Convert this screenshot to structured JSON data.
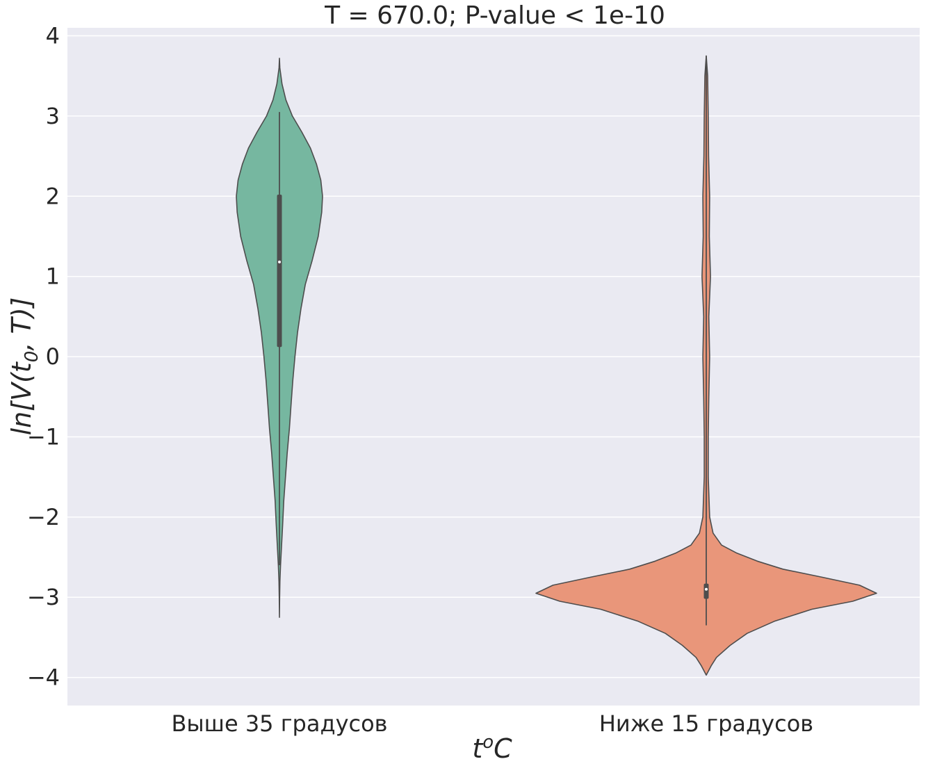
{
  "chart_data": {
    "type": "violin",
    "title": "T = 670.0; P-value < 1e-10",
    "xlabel": "t",
    "xlabel_sup": "o",
    "xlabel_suffix": "C",
    "ylabel": "ln[V(t0, T)]",
    "ylabel_parts": {
      "pre": "ln[V(t",
      "sub": "0",
      "post": ", T)]"
    },
    "ylim": [
      -4.35,
      4.1
    ],
    "yticks": [
      4,
      3,
      2,
      1,
      0,
      -1,
      -2,
      -3,
      -4
    ],
    "ytick_labels": [
      "4",
      "3",
      "2",
      "1",
      "0",
      "−1",
      "−2",
      "−3",
      "−4"
    ],
    "grid": true,
    "background": "#eaeaf2",
    "categories": [
      "Выше 35 градусов",
      "Ниже 15 градусов"
    ],
    "series": [
      {
        "category": "Выше 35 градусов",
        "color": "#76b7a0",
        "whisker": [
          -2.6,
          3.05
        ],
        "q1": 0.12,
        "median": 1.18,
        "q3": 2.02,
        "profile": [
          [
            3.72,
            0.0
          ],
          [
            3.6,
            0.01
          ],
          [
            3.4,
            0.06
          ],
          [
            3.2,
            0.15
          ],
          [
            3.0,
            0.3
          ],
          [
            2.8,
            0.52
          ],
          [
            2.6,
            0.72
          ],
          [
            2.4,
            0.86
          ],
          [
            2.2,
            0.96
          ],
          [
            2.0,
            1.0
          ],
          [
            1.8,
            0.98
          ],
          [
            1.5,
            0.9
          ],
          [
            1.2,
            0.76
          ],
          [
            0.9,
            0.6
          ],
          [
            0.6,
            0.5
          ],
          [
            0.3,
            0.42
          ],
          [
            0.0,
            0.36
          ],
          [
            -0.3,
            0.31
          ],
          [
            -0.6,
            0.27
          ],
          [
            -0.9,
            0.23
          ],
          [
            -1.2,
            0.18
          ],
          [
            -1.5,
            0.14
          ],
          [
            -1.8,
            0.1
          ],
          [
            -2.1,
            0.075
          ],
          [
            -2.4,
            0.045
          ],
          [
            -2.6,
            0.025
          ],
          [
            -2.8,
            0.012
          ],
          [
            -3.0,
            0.005
          ],
          [
            -3.25,
            0.0
          ]
        ]
      },
      {
        "category": "Ниже 15 градусов",
        "color": "#e9967a",
        "whisker": [
          -3.35,
          3.75
        ],
        "q1": -3.02,
        "median": -2.9,
        "q3": -2.83,
        "profile": [
          [
            3.75,
            0.0
          ],
          [
            3.5,
            0.008
          ],
          [
            3.0,
            0.012
          ],
          [
            2.5,
            0.014
          ],
          [
            2.0,
            0.02
          ],
          [
            1.5,
            0.018
          ],
          [
            1.0,
            0.025
          ],
          [
            0.5,
            0.015
          ],
          [
            0.0,
            0.02
          ],
          [
            -0.5,
            0.015
          ],
          [
            -1.0,
            0.012
          ],
          [
            -1.5,
            0.012
          ],
          [
            -2.0,
            0.02
          ],
          [
            -2.2,
            0.04
          ],
          [
            -2.35,
            0.09
          ],
          [
            -2.45,
            0.18
          ],
          [
            -2.55,
            0.3
          ],
          [
            -2.65,
            0.45
          ],
          [
            -2.75,
            0.68
          ],
          [
            -2.85,
            0.9
          ],
          [
            -2.95,
            1.0
          ],
          [
            -3.05,
            0.86
          ],
          [
            -3.15,
            0.62
          ],
          [
            -3.3,
            0.4
          ],
          [
            -3.45,
            0.24
          ],
          [
            -3.6,
            0.14
          ],
          [
            -3.75,
            0.06
          ],
          [
            -3.85,
            0.03
          ],
          [
            -3.97,
            0.0
          ]
        ]
      }
    ]
  }
}
